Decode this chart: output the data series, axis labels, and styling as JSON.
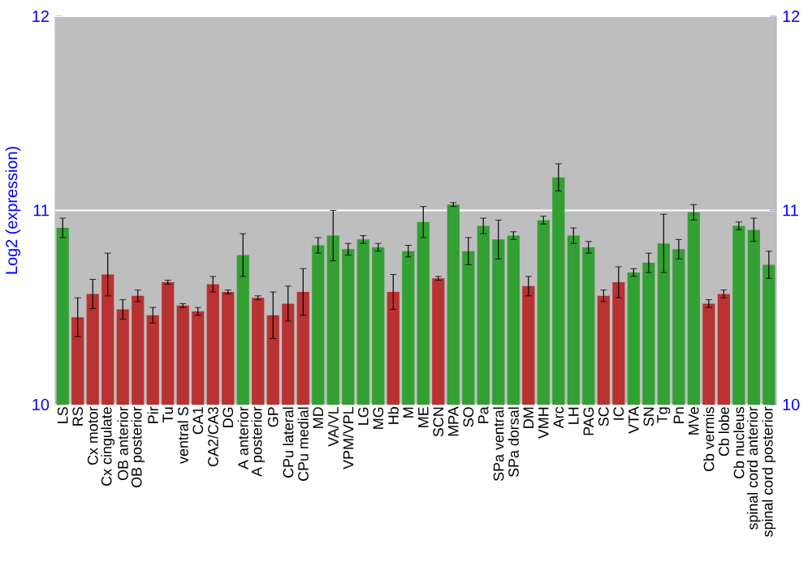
{
  "chart_data": {
    "type": "bar",
    "ylabel": "Log2 (expression)",
    "categories": [
      "LS",
      "RS",
      "Cx motor",
      "Cx cingulate",
      "OB anterior",
      "OB posterior",
      "Pir",
      "Tu",
      "ventral S",
      "CA1",
      "CA2/CA3",
      "DG",
      "A anterior",
      "A posterior",
      "GP",
      "CPu lateral",
      "CPu medial",
      "MD",
      "VA/VL",
      "VPM/VPL",
      "LG",
      "MG",
      "Hb",
      "M",
      "ME",
      "SCN",
      "MPA",
      "SO",
      "Pa",
      "SPa ventral",
      "SPa dorsal",
      "DM",
      "VMH",
      "Arc",
      "LH",
      "PAG",
      "SC",
      "IC",
      "VTA",
      "SN",
      "Tg",
      "Pn",
      "MVe",
      "Cb vermis",
      "Cb lobe",
      "Cb nucleus",
      "spinal cord anterior",
      "spinal cord posterior"
    ],
    "values": [
      10.91,
      10.45,
      10.57,
      10.67,
      10.49,
      10.56,
      10.46,
      10.63,
      10.51,
      10.48,
      10.62,
      10.58,
      10.77,
      10.55,
      10.46,
      10.52,
      10.58,
      10.82,
      10.87,
      10.8,
      10.85,
      10.81,
      10.58,
      10.79,
      10.94,
      10.65,
      11.03,
      10.79,
      10.92,
      10.85,
      10.87,
      10.61,
      10.95,
      11.17,
      10.87,
      10.81,
      10.56,
      10.63,
      10.68,
      10.73,
      10.83,
      10.8,
      10.99,
      10.52,
      10.57,
      10.92,
      10.9,
      10.72
    ],
    "errors": [
      0.05,
      0.1,
      0.075,
      0.11,
      0.05,
      0.03,
      0.04,
      0.01,
      0.01,
      0.02,
      0.04,
      0.01,
      0.11,
      0.01,
      0.12,
      0.09,
      0.12,
      0.04,
      0.13,
      0.03,
      0.02,
      0.02,
      0.09,
      0.03,
      0.08,
      0.01,
      0.01,
      0.07,
      0.04,
      0.1,
      0.02,
      0.05,
      0.02,
      0.07,
      0.04,
      0.03,
      0.03,
      0.08,
      0.02,
      0.05,
      0.15,
      0.05,
      0.04,
      0.02,
      0.02,
      0.02,
      0.06,
      0.07
    ],
    "colors": [
      "#33a033",
      "#b83232",
      "#b83232",
      "#b83232",
      "#b83232",
      "#b83232",
      "#b83232",
      "#b83232",
      "#b83232",
      "#b83232",
      "#b83232",
      "#b83232",
      "#33a033",
      "#b83232",
      "#b83232",
      "#b83232",
      "#b83232",
      "#33a033",
      "#33a033",
      "#33a033",
      "#33a033",
      "#33a033",
      "#b83232",
      "#33a033",
      "#33a033",
      "#b83232",
      "#33a033",
      "#33a033",
      "#33a033",
      "#33a033",
      "#33a033",
      "#b83232",
      "#33a033",
      "#33a033",
      "#33a033",
      "#33a033",
      "#b83232",
      "#b83232",
      "#33a033",
      "#33a033",
      "#33a033",
      "#33a033",
      "#33a033",
      "#b83232",
      "#b83232",
      "#33a033",
      "#33a033",
      "#33a033"
    ],
    "ylim": [
      10,
      12
    ],
    "yticks": [
      10,
      11,
      12
    ],
    "y2lim": [
      10,
      12
    ],
    "y2ticks": [
      10,
      11,
      12
    ],
    "grid": "y",
    "tick_labels": "xy"
  }
}
